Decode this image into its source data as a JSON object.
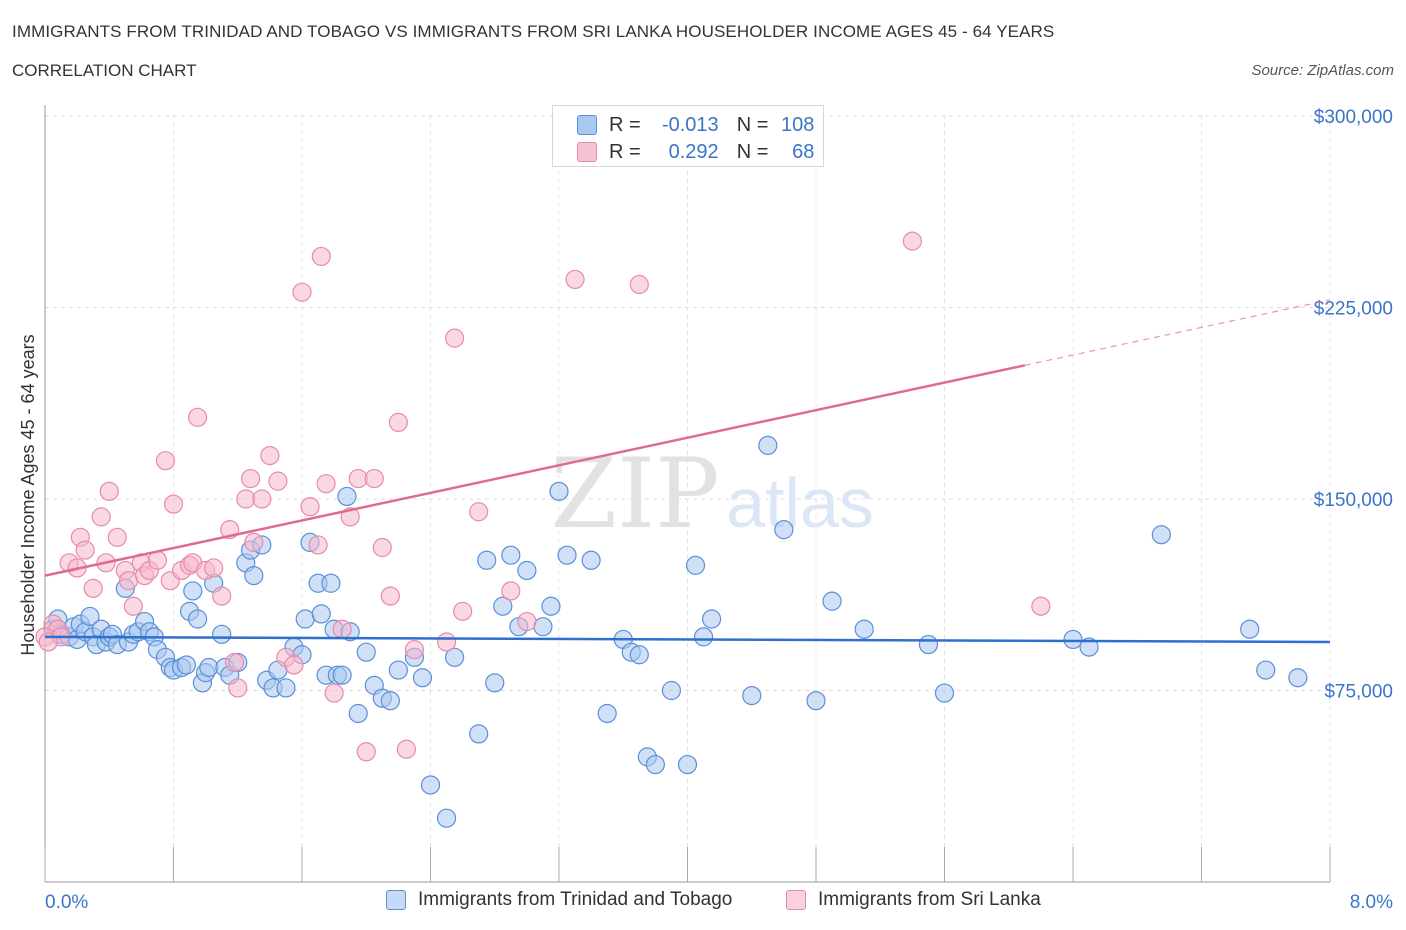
{
  "header": {
    "title": "IMMIGRANTS FROM TRINIDAD AND TOBAGO VS IMMIGRANTS FROM SRI LANKA HOUSEHOLDER INCOME AGES 45 - 64 YEARS",
    "subtitle": "CORRELATION CHART",
    "source": "Source: ZipAtlas.com"
  },
  "stats": {
    "blue": {
      "r_label": "R =",
      "r_value": "-0.013",
      "n_label": "N =",
      "n_value": "108"
    },
    "pink": {
      "r_label": "R =",
      "r_value": "0.292",
      "n_label": "N =",
      "n_value": "68"
    }
  },
  "colors": {
    "blue_fill": "#a9c8f0",
    "blue_stroke": "#5b8fd8",
    "blue_line": "#2f6fd0",
    "pink_fill": "#f6b8cc",
    "pink_stroke": "#e88aa8",
    "pink_line": "#e06a90",
    "axis_text": "#3a74c8"
  },
  "chart_data": {
    "type": "scatter",
    "ylabel": "Householder Income Ages 45 - 64 years",
    "xlim": [
      0,
      8
    ],
    "ylim": [
      0,
      300000
    ],
    "x_tick_labels": [
      "0.0%",
      "8.0%"
    ],
    "y_ticks": [
      75000,
      150000,
      225000,
      300000
    ],
    "y_tick_labels": [
      "$75,000",
      "$150,000",
      "$225,000",
      "$300,000"
    ],
    "grid": true,
    "watermark": {
      "zip": "ZIP",
      "atlas": "atlas"
    },
    "series": [
      {
        "name": "Immigrants from Trinidad and Tobago",
        "trend": {
          "x1": 0.0,
          "y1": 96000,
          "x2": 8.0,
          "y2": 94000,
          "dash_from": null
        },
        "points": [
          [
            0.05,
            99000
          ],
          [
            0.08,
            103000
          ],
          [
            0.1,
            97000
          ],
          [
            0.15,
            96000
          ],
          [
            0.18,
            100000
          ],
          [
            0.2,
            95000
          ],
          [
            0.22,
            101000
          ],
          [
            0.25,
            98000
          ],
          [
            0.28,
            104000
          ],
          [
            0.3,
            96000
          ],
          [
            0.32,
            93000
          ],
          [
            0.35,
            99000
          ],
          [
            0.38,
            94000
          ],
          [
            0.4,
            96000
          ],
          [
            0.42,
            97000
          ],
          [
            0.45,
            93000
          ],
          [
            0.5,
            115000
          ],
          [
            0.52,
            94000
          ],
          [
            0.55,
            97000
          ],
          [
            0.58,
            98000
          ],
          [
            0.62,
            102000
          ],
          [
            0.65,
            98000
          ],
          [
            0.68,
            96000
          ],
          [
            0.7,
            91000
          ],
          [
            0.75,
            88000
          ],
          [
            0.78,
            84000
          ],
          [
            0.8,
            83000
          ],
          [
            0.85,
            84000
          ],
          [
            0.88,
            85000
          ],
          [
            0.9,
            106000
          ],
          [
            0.92,
            114000
          ],
          [
            0.95,
            103000
          ],
          [
            0.98,
            78000
          ],
          [
            1.0,
            82000
          ],
          [
            1.02,
            84000
          ],
          [
            1.05,
            117000
          ],
          [
            1.1,
            97000
          ],
          [
            1.12,
            84000
          ],
          [
            1.15,
            81000
          ],
          [
            1.2,
            86000
          ],
          [
            1.25,
            125000
          ],
          [
            1.28,
            130000
          ],
          [
            1.3,
            120000
          ],
          [
            1.35,
            132000
          ],
          [
            1.38,
            79000
          ],
          [
            1.42,
            76000
          ],
          [
            1.45,
            83000
          ],
          [
            1.5,
            76000
          ],
          [
            1.55,
            92000
          ],
          [
            1.6,
            89000
          ],
          [
            1.62,
            103000
          ],
          [
            1.65,
            133000
          ],
          [
            1.7,
            117000
          ],
          [
            1.72,
            105000
          ],
          [
            1.75,
            81000
          ],
          [
            1.78,
            117000
          ],
          [
            1.8,
            99000
          ],
          [
            1.82,
            81000
          ],
          [
            1.85,
            81000
          ],
          [
            1.88,
            151000
          ],
          [
            1.9,
            98000
          ],
          [
            1.95,
            66000
          ],
          [
            2.0,
            90000
          ],
          [
            2.05,
            77000
          ],
          [
            2.1,
            72000
          ],
          [
            2.15,
            71000
          ],
          [
            2.2,
            83000
          ],
          [
            2.3,
            88000
          ],
          [
            2.35,
            80000
          ],
          [
            2.4,
            38000
          ],
          [
            2.5,
            25000
          ],
          [
            2.55,
            88000
          ],
          [
            2.7,
            58000
          ],
          [
            2.75,
            126000
          ],
          [
            2.8,
            78000
          ],
          [
            2.85,
            108000
          ],
          [
            2.9,
            128000
          ],
          [
            2.95,
            100000
          ],
          [
            3.0,
            122000
          ],
          [
            3.1,
            100000
          ],
          [
            3.15,
            108000
          ],
          [
            3.2,
            153000
          ],
          [
            3.25,
            128000
          ],
          [
            3.4,
            126000
          ],
          [
            3.5,
            66000
          ],
          [
            3.6,
            95000
          ],
          [
            3.65,
            90000
          ],
          [
            3.7,
            89000
          ],
          [
            3.75,
            49000
          ],
          [
            3.8,
            46000
          ],
          [
            3.9,
            75000
          ],
          [
            4.0,
            46000
          ],
          [
            4.05,
            124000
          ],
          [
            4.1,
            96000
          ],
          [
            4.15,
            103000
          ],
          [
            4.4,
            73000
          ],
          [
            4.5,
            171000
          ],
          [
            4.6,
            138000
          ],
          [
            4.8,
            71000
          ],
          [
            4.9,
            110000
          ],
          [
            5.1,
            99000
          ],
          [
            5.5,
            93000
          ],
          [
            5.6,
            74000
          ],
          [
            6.4,
            95000
          ],
          [
            6.5,
            92000
          ],
          [
            6.95,
            136000
          ],
          [
            7.5,
            99000
          ],
          [
            7.6,
            83000
          ],
          [
            7.8,
            80000
          ]
        ]
      },
      {
        "name": "Immigrants from Sri Lanka",
        "trend": {
          "x1": 0.0,
          "y1": 120000,
          "x2": 8.0,
          "y2": 228000,
          "dash_from": 6.1
        },
        "points": [
          [
            0.05,
            101000
          ],
          [
            0.08,
            99000
          ],
          [
            0.1,
            96000
          ],
          [
            0.15,
            125000
          ],
          [
            0.2,
            123000
          ],
          [
            0.22,
            135000
          ],
          [
            0.25,
            130000
          ],
          [
            0.3,
            115000
          ],
          [
            0.35,
            143000
          ],
          [
            0.38,
            125000
          ],
          [
            0.4,
            153000
          ],
          [
            0.45,
            135000
          ],
          [
            0.5,
            122000
          ],
          [
            0.52,
            118000
          ],
          [
            0.55,
            108000
          ],
          [
            0.6,
            125000
          ],
          [
            0.62,
            120000
          ],
          [
            0.65,
            122000
          ],
          [
            0.7,
            126000
          ],
          [
            0.75,
            165000
          ],
          [
            0.78,
            118000
          ],
          [
            0.8,
            148000
          ],
          [
            0.85,
            122000
          ],
          [
            0.9,
            124000
          ],
          [
            0.92,
            125000
          ],
          [
            0.95,
            182000
          ],
          [
            1.0,
            122000
          ],
          [
            1.05,
            123000
          ],
          [
            1.1,
            112000
          ],
          [
            1.15,
            138000
          ],
          [
            1.18,
            86000
          ],
          [
            1.2,
            76000
          ],
          [
            1.25,
            150000
          ],
          [
            1.28,
            158000
          ],
          [
            1.3,
            133000
          ],
          [
            1.35,
            150000
          ],
          [
            1.4,
            167000
          ],
          [
            1.45,
            157000
          ],
          [
            1.5,
            88000
          ],
          [
            1.55,
            85000
          ],
          [
            1.6,
            231000
          ],
          [
            1.65,
            147000
          ],
          [
            1.7,
            132000
          ],
          [
            1.72,
            245000
          ],
          [
            1.75,
            156000
          ],
          [
            1.8,
            74000
          ],
          [
            1.85,
            99000
          ],
          [
            1.9,
            143000
          ],
          [
            1.95,
            158000
          ],
          [
            2.0,
            51000
          ],
          [
            2.05,
            158000
          ],
          [
            2.1,
            131000
          ],
          [
            2.15,
            112000
          ],
          [
            2.2,
            180000
          ],
          [
            2.25,
            52000
          ],
          [
            2.3,
            91000
          ],
          [
            2.5,
            94000
          ],
          [
            2.55,
            213000
          ],
          [
            2.6,
            106000
          ],
          [
            2.7,
            145000
          ],
          [
            2.9,
            114000
          ],
          [
            3.0,
            102000
          ],
          [
            3.3,
            236000
          ],
          [
            3.7,
            234000
          ],
          [
            5.4,
            251000
          ],
          [
            6.2,
            108000
          ],
          [
            0.0,
            96000
          ],
          [
            0.02,
            94000
          ]
        ]
      }
    ]
  },
  "legend": {
    "blue_label": "Immigrants from Trinidad and Tobago",
    "pink_label": "Immigrants from Sri Lanka"
  }
}
